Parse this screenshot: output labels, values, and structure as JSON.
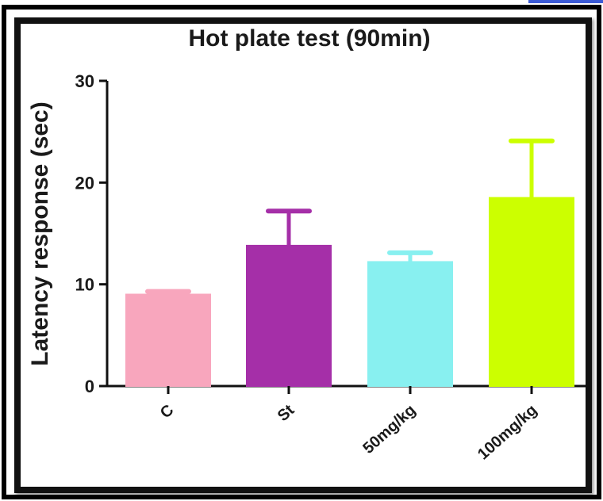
{
  "chart_data": {
    "type": "bar",
    "title": "Hot plate test (90min)",
    "xlabel": "",
    "ylabel": "Latency response (sec)",
    "ylim": [
      0,
      30
    ],
    "yticks": [
      "0",
      "10",
      "20",
      "30"
    ],
    "categories": [
      "C",
      "St",
      "50mg/kg",
      "100mg/kg"
    ],
    "values": [
      9.0,
      13.8,
      12.2,
      18.5
    ],
    "error": [
      0.3,
      3.4,
      0.9,
      5.6
    ],
    "colors": [
      "#f8a6bd",
      "#a52fa8",
      "#88f0f0",
      "#ccff00"
    ],
    "grid": false
  }
}
